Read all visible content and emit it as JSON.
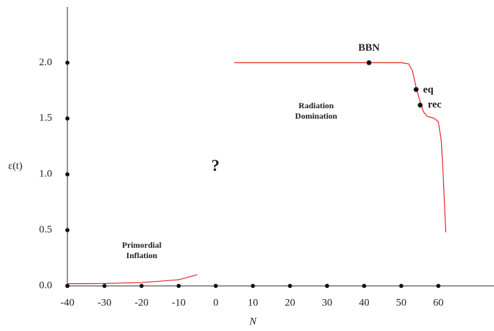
{
  "chart_data": {
    "type": "line",
    "xlabel": "N",
    "ylabel": "ε(t)",
    "xlim": [
      -40,
      75
    ],
    "ylim": [
      0,
      2.5
    ],
    "xticks": [
      -40,
      -30,
      -20,
      -10,
      0,
      10,
      20,
      30,
      40,
      50,
      60
    ],
    "yticks": [
      {
        "value": 0,
        "label": "0.0"
      },
      {
        "value": 0.5,
        "label": "0.5"
      },
      {
        "value": 1,
        "label": "1.0"
      },
      {
        "value": 1.5,
        "label": "1.5"
      },
      {
        "value": 2,
        "label": "2.0"
      }
    ],
    "series": [
      {
        "color": "#e0201c",
        "x": [
          -40,
          -30,
          -20,
          -10,
          -5
        ],
        "values": [
          0.02,
          0.022,
          0.03,
          0.055,
          0.1
        ]
      },
      {
        "color": "#e0201c",
        "x": [
          5,
          40,
          50,
          52,
          53,
          54,
          55,
          56,
          57,
          59,
          60,
          60.8,
          61.3,
          61.7,
          62
        ],
        "values": [
          2.0,
          2.0,
          2.0,
          1.99,
          1.93,
          1.78,
          1.66,
          1.56,
          1.52,
          1.5,
          1.47,
          1.3,
          1.0,
          0.7,
          0.48
        ]
      }
    ],
    "points": [
      {
        "label": "BBN",
        "x": 41.3,
        "value": 2.0
      },
      {
        "label": "eq",
        "x": 54.0,
        "value": 1.76
      },
      {
        "label": "rec",
        "x": 55.1,
        "value": 1.62
      }
    ],
    "annotations": [
      "Primordial Inflation",
      "Radiation Domination",
      "?"
    ]
  }
}
